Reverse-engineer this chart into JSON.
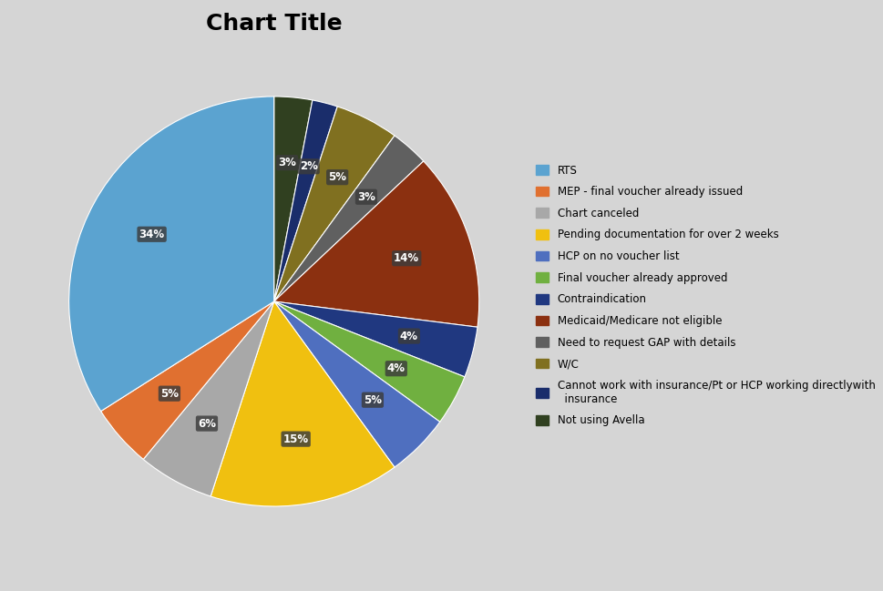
{
  "title": "Chart Title",
  "legend_labels": [
    "RTS",
    "MEP - final voucher already issued",
    "Chart canceled",
    "Pending documentation for over 2 weeks",
    "HCP on no voucher list",
    "Final voucher already approved",
    "Contraindication",
    "Medicaid/Medicare not eligible",
    "Need to request GAP with details",
    "W/C",
    "Cannot work with insurance/Pt or HCP working directlywith\n  insurance",
    "Not using Avella"
  ],
  "legend_colors": [
    "#5BA3D0",
    "#E07030",
    "#A8A8A8",
    "#F0C010",
    "#4F6FBF",
    "#70B040",
    "#203880",
    "#8B3010",
    "#606060",
    "#807020",
    "#1A2D6B",
    "#304020"
  ],
  "wedge_pcts": [
    3,
    2,
    5,
    3,
    14,
    4,
    4,
    5,
    15,
    6,
    5,
    34
  ],
  "wedge_colors": [
    "#304020",
    "#1A2D6B",
    "#807020",
    "#606060",
    "#8B3010",
    "#203880",
    "#70B040",
    "#4F6FBF",
    "#F0C010",
    "#A8A8A8",
    "#E07030",
    "#5BA3D0"
  ],
  "wedge_labels": [
    "Not using Avella",
    "Cannot work",
    "W/C",
    "Need GAP",
    "Medicaid",
    "Contraindication",
    "Final voucher",
    "HCP",
    "Pending",
    "Chart canceled",
    "MEP",
    "RTS"
  ],
  "background_color": "#D5D5D5",
  "title_fontsize": 18,
  "legend_fontsize": 8.5,
  "startangle": 90
}
